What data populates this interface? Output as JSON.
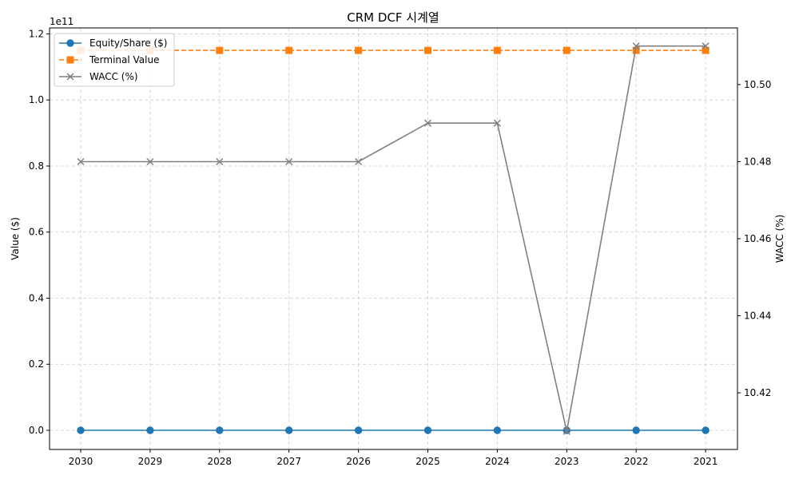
{
  "chart_data": {
    "type": "line",
    "title": "CRM DCF 시계열",
    "xlabel": "",
    "ylabel": "Value ($)",
    "y2label": "WACC (%)",
    "y_offset_label": "1e11",
    "categories": [
      "2030",
      "2029",
      "2028",
      "2027",
      "2026",
      "2025",
      "2024",
      "2023",
      "2022",
      "2021"
    ],
    "ylim": [
      -0.058,
      1.218
    ],
    "y2lim": [
      10.4053,
      10.5147
    ],
    "yticks": [
      "0.0",
      "0.2",
      "0.4",
      "0.6",
      "0.8",
      "1.0",
      "1.2"
    ],
    "y2ticks": [
      "10.42",
      "10.44",
      "10.46",
      "10.48",
      "10.50"
    ],
    "grid": true,
    "legend_position": "top-left",
    "series": [
      {
        "name": "Equity/Share ($)",
        "axis": "left",
        "color": "#1f77b4",
        "marker": "circle",
        "dash": "solid",
        "values": [
          0,
          0,
          0,
          0,
          0,
          0,
          0,
          0,
          0,
          0
        ]
      },
      {
        "name": "Terminal Value",
        "axis": "left",
        "color": "#ff7f0e",
        "marker": "square",
        "dash": "dashed",
        "values": [
          1.15,
          1.15,
          1.15,
          1.15,
          1.15,
          1.15,
          1.15,
          1.15,
          1.15,
          1.15
        ]
      },
      {
        "name": "WACC (%)",
        "axis": "right",
        "color": "#808080",
        "marker": "x",
        "dash": "solid",
        "values": [
          10.48,
          10.48,
          10.48,
          10.48,
          10.48,
          10.49,
          10.49,
          10.41,
          10.51,
          10.51
        ]
      }
    ]
  }
}
